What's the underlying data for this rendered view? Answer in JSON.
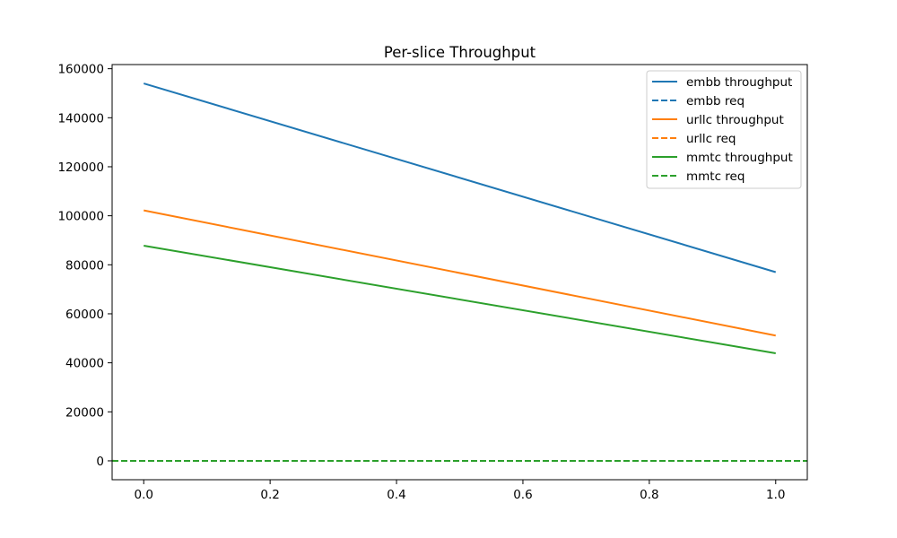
{
  "chart_data": {
    "type": "line",
    "title": "Per-slice Throughput",
    "xlabel": "",
    "ylabel": "",
    "xlim": [
      -0.05,
      1.05
    ],
    "ylim": [
      -7700,
      161700
    ],
    "x_ticks": [
      0.0,
      0.2,
      0.4,
      0.6,
      0.8,
      1.0
    ],
    "x_tick_labels": [
      "0.0",
      "0.2",
      "0.4",
      "0.6",
      "0.8",
      "1.0"
    ],
    "y_ticks": [
      0,
      20000,
      40000,
      60000,
      80000,
      100000,
      120000,
      140000,
      160000
    ],
    "y_tick_labels": [
      "0",
      "20000",
      "40000",
      "60000",
      "80000",
      "100000",
      "120000",
      "140000",
      "160000"
    ],
    "grid": false,
    "legend_position": "top-right",
    "series": [
      {
        "name": "embb throughput",
        "style": "solid",
        "color": "#1f77b4",
        "x": [
          0.0,
          1.0
        ],
        "values": [
          154000,
          77000
        ]
      },
      {
        "name": "embb req",
        "style": "dashed",
        "color": "#1f77b4",
        "x": [
          -0.05,
          1.05
        ],
        "values": [
          0,
          0
        ]
      },
      {
        "name": "urllc throughput",
        "style": "solid",
        "color": "#ff7f0e",
        "x": [
          0.0,
          1.0
        ],
        "values": [
          102200,
          51100
        ]
      },
      {
        "name": "urllc req",
        "style": "dashed",
        "color": "#ff7f0e",
        "x": [
          -0.05,
          1.05
        ],
        "values": [
          0,
          0
        ]
      },
      {
        "name": "mmtc throughput",
        "style": "solid",
        "color": "#2ca02c",
        "x": [
          0.0,
          1.0
        ],
        "values": [
          87800,
          43900
        ]
      },
      {
        "name": "mmtc req",
        "style": "dashed",
        "color": "#2ca02c",
        "x": [
          -0.05,
          1.05
        ],
        "values": [
          0,
          0
        ]
      }
    ]
  }
}
